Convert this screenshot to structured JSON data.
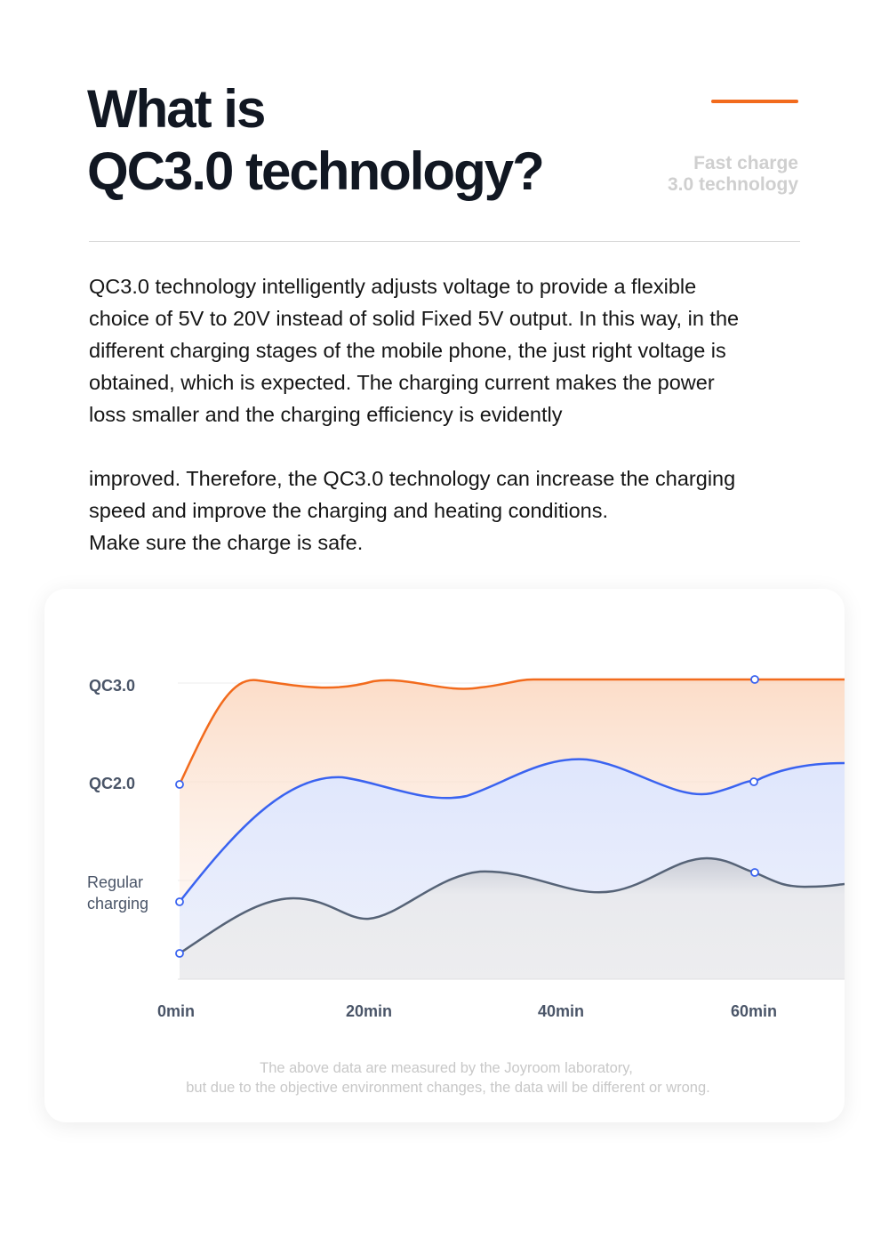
{
  "header": {
    "title_lines": [
      "What is",
      "QC3.0 technology?"
    ],
    "side_lines": [
      "Fast charge",
      "3.0 technology"
    ]
  },
  "body": {
    "paragraph1_lines": [
      "QC3.0 technology intelligently adjusts voltage to provide a flexible",
      "choice of 5V to 20V instead of solid Fixed 5V output. In this way, in the",
      "different charging stages of the mobile phone, the just right voltage is",
      "obtained, which is expected. The charging current makes the power",
      "loss smaller and the charging efficiency is evidently"
    ],
    "paragraph2_lines": [
      "improved. Therefore, the QC3.0 technology can increase the charging",
      "speed and improve the charging and heating conditions.",
      "Make sure the charge is safe."
    ]
  },
  "chart": {
    "row_labels": [
      "QC3.0",
      "QC2.0"
    ],
    "regular_label_lines": [
      "Regular",
      "charging"
    ],
    "x_labels": [
      "0min",
      "20min",
      "40min",
      "60min"
    ],
    "footnote_lines": [
      "The above data are measured by the Joyroom laboratory,",
      "but due to the objective environment changes, the data will be different or wrong."
    ]
  }
}
